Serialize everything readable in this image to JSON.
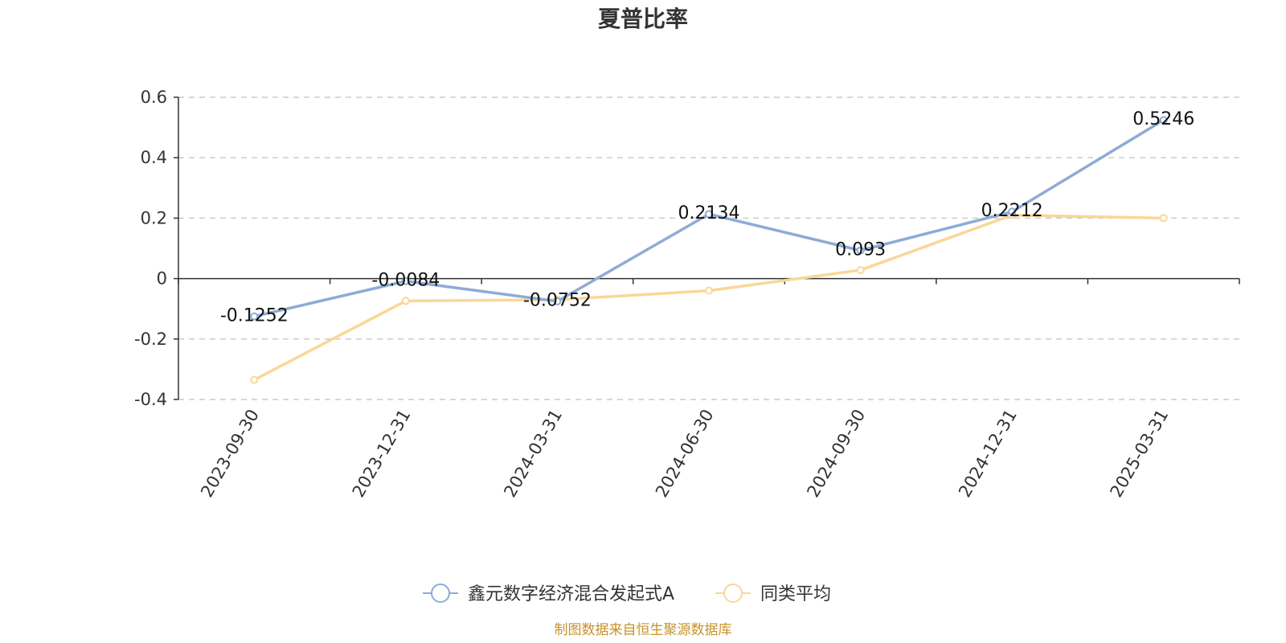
{
  "chart_data": {
    "type": "line",
    "title": "夏普比率",
    "x": [
      "2023-09-30",
      "2023-12-31",
      "2024-03-31",
      "2024-06-30",
      "2024-09-30",
      "2024-12-31",
      "2025-03-31"
    ],
    "series": [
      {
        "name": "鑫元数字经济混合发起式A",
        "color": "#8eabd6",
        "values": [
          -0.1252,
          -0.0084,
          -0.0752,
          0.2134,
          0.093,
          0.2212,
          0.5246
        ],
        "labels": [
          "-0.1252",
          "-0.0084",
          "-0.0752",
          "0.2134",
          "0.093",
          "0.2212",
          "0.5246"
        ]
      },
      {
        "name": "同类平均",
        "color": "#fad797",
        "values": [
          -0.335,
          -0.074,
          -0.07,
          -0.04,
          0.028,
          0.21,
          0.2
        ]
      }
    ],
    "y_ticks": [
      0.6,
      0.4,
      0.2,
      0,
      -0.2,
      -0.4
    ],
    "y_tick_labels": [
      "0.6",
      "0.4",
      "0.2",
      "0",
      "-0.2",
      "-0.4"
    ],
    "ylim": [
      -0.4,
      0.6
    ],
    "grid": true,
    "legend": "bottom-center",
    "source": "制图数据来自恒生聚源数据库"
  }
}
